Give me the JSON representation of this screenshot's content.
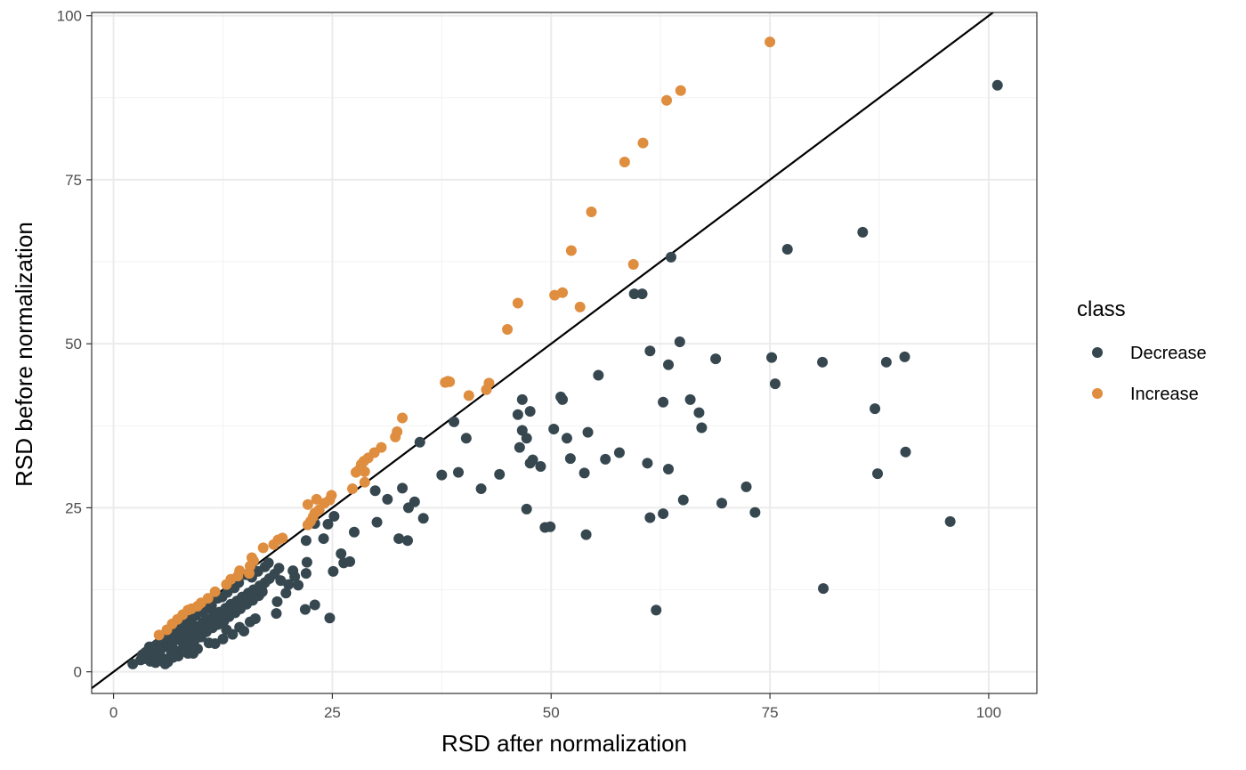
{
  "chart_data": {
    "type": "scatter",
    "xlabel": "RSD after normalization",
    "ylabel": "RSD before normalization",
    "xlim": [
      -2.5,
      105.5
    ],
    "ylim": [
      -3.3,
      100.5
    ],
    "x_ticks": [
      0,
      25,
      50,
      75,
      100
    ],
    "y_ticks": [
      0,
      25,
      50,
      75,
      100
    ],
    "grid": true,
    "reference_line": {
      "slope": 1,
      "intercept": 0,
      "color": "#000000"
    },
    "legend": {
      "title": "class",
      "position": "right"
    },
    "series": [
      {
        "name": "Decrease",
        "color": "#36474f",
        "points": [
          [
            101,
            89.4
          ],
          [
            85.6,
            67
          ],
          [
            77,
            64.4
          ],
          [
            63.7,
            63.2
          ],
          [
            59.5,
            57.6
          ],
          [
            60.4,
            57.6
          ],
          [
            64.7,
            50.3
          ],
          [
            61.3,
            48.9
          ],
          [
            63.4,
            46.8
          ],
          [
            68.8,
            47.7
          ],
          [
            75.2,
            47.9
          ],
          [
            81,
            47.2
          ],
          [
            88.3,
            47.2
          ],
          [
            90.4,
            48
          ],
          [
            55.4,
            45.2
          ],
          [
            75.6,
            43.9
          ],
          [
            51.1,
            41.9
          ],
          [
            46.7,
            41.5
          ],
          [
            51.3,
            41.5
          ],
          [
            62.8,
            41.1
          ],
          [
            65.9,
            41.5
          ],
          [
            87,
            40.1
          ],
          [
            46.2,
            39.2
          ],
          [
            47.6,
            39.7
          ],
          [
            66.9,
            39.5
          ],
          [
            38.9,
            38.1
          ],
          [
            46.7,
            36.8
          ],
          [
            50.3,
            37
          ],
          [
            54.2,
            36.5
          ],
          [
            67.2,
            37.2
          ],
          [
            40.3,
            35.6
          ],
          [
            47.2,
            35.6
          ],
          [
            51.8,
            35.6
          ],
          [
            35,
            35
          ],
          [
            46.4,
            34.2
          ],
          [
            57.8,
            33.4
          ],
          [
            90.5,
            33.5
          ],
          [
            47.9,
            32.3
          ],
          [
            52.2,
            32.5
          ],
          [
            56.2,
            32.4
          ],
          [
            47.6,
            31.8
          ],
          [
            48.8,
            31.3
          ],
          [
            61,
            31.8
          ],
          [
            63.4,
            30.9
          ],
          [
            39.4,
            30.4
          ],
          [
            44.1,
            30.1
          ],
          [
            53.8,
            30.3
          ],
          [
            87.3,
            30.2
          ],
          [
            37.5,
            30
          ],
          [
            29.9,
            27.6
          ],
          [
            33,
            28
          ],
          [
            42,
            27.9
          ],
          [
            72.3,
            28.2
          ],
          [
            31.3,
            26.3
          ],
          [
            65.1,
            26.2
          ],
          [
            69.5,
            25.7
          ],
          [
            33.7,
            25
          ],
          [
            34.4,
            25.9
          ],
          [
            47.2,
            24.8
          ],
          [
            35.4,
            23.4
          ],
          [
            61.3,
            23.5
          ],
          [
            62.8,
            24.1
          ],
          [
            73.3,
            24.3
          ],
          [
            95.6,
            22.9
          ],
          [
            49.3,
            22
          ],
          [
            49.9,
            22.1
          ],
          [
            30.1,
            22.8
          ],
          [
            25.2,
            23.7
          ],
          [
            24.5,
            22.5
          ],
          [
            23,
            22.6
          ],
          [
            27.5,
            21.3
          ],
          [
            32.6,
            20.3
          ],
          [
            33.6,
            20
          ],
          [
            54,
            20.9
          ],
          [
            24,
            20.3
          ],
          [
            22,
            20
          ],
          [
            26,
            18
          ],
          [
            26.3,
            16.6
          ],
          [
            27,
            16.8
          ],
          [
            25.1,
            15.3
          ],
          [
            22.1,
            16.7
          ],
          [
            22,
            15
          ],
          [
            20.5,
            15.4
          ],
          [
            18.9,
            15.8
          ],
          [
            20.7,
            14.5
          ],
          [
            20,
            13.3
          ],
          [
            21.1,
            13.2
          ],
          [
            19.7,
            12
          ],
          [
            18.7,
            10.7
          ],
          [
            18.6,
            8.9
          ],
          [
            21.9,
            9.5
          ],
          [
            23,
            10.2
          ],
          [
            24.7,
            8.2
          ],
          [
            62,
            9.4
          ],
          [
            81.1,
            12.7
          ],
          [
            17.7,
            16.6
          ],
          [
            17.3,
            16
          ],
          [
            16.5,
            15.3
          ],
          [
            15.8,
            14.4
          ],
          [
            15.1,
            14.8
          ],
          [
            14.3,
            13.6
          ],
          [
            13.8,
            12.8
          ],
          [
            13,
            12.1
          ],
          [
            12.4,
            11.4
          ],
          [
            11.9,
            11.2
          ],
          [
            11.2,
            10.1
          ],
          [
            10.7,
            9.6
          ],
          [
            10.1,
            9.1
          ],
          [
            9.4,
            8.6
          ],
          [
            8.9,
            7.9
          ],
          [
            8.3,
            7.3
          ],
          [
            7.6,
            6.9
          ],
          [
            7.1,
            6.3
          ],
          [
            6.5,
            5.6
          ],
          [
            6,
            5.1
          ],
          [
            5.4,
            4.6
          ],
          [
            4.9,
            4.1
          ],
          [
            4.3,
            3.5
          ],
          [
            3.8,
            3.1
          ],
          [
            3.3,
            2.6
          ],
          [
            3.9,
            2.2
          ],
          [
            4.6,
            2.9
          ],
          [
            5.2,
            3.4
          ],
          [
            5.8,
            3.9
          ],
          [
            6.4,
            4.4
          ],
          [
            7,
            4.8
          ],
          [
            7.7,
            5.3
          ],
          [
            8.2,
            5.8
          ],
          [
            8.9,
            6.3
          ],
          [
            9.5,
            6.9
          ],
          [
            10.2,
            7.5
          ],
          [
            10.8,
            8
          ],
          [
            11.5,
            8.6
          ],
          [
            12.1,
            9.1
          ],
          [
            12.8,
            9.7
          ],
          [
            13.4,
            10.3
          ],
          [
            14.1,
            10.8
          ],
          [
            14.7,
            11.4
          ],
          [
            15.4,
            12
          ],
          [
            16,
            12.5
          ],
          [
            16.7,
            13.1
          ],
          [
            17.3,
            13.6
          ],
          [
            4.2,
            1.6
          ],
          [
            4.8,
            1.4
          ],
          [
            5.5,
            2.1
          ],
          [
            6.1,
            1.9
          ],
          [
            6.6,
            2.6
          ],
          [
            7.3,
            3.1
          ],
          [
            8,
            3.8
          ],
          [
            8.7,
            4.2
          ],
          [
            9.3,
            4.9
          ],
          [
            10,
            5.3
          ],
          [
            10.6,
            6.1
          ],
          [
            11.3,
            6.7
          ],
          [
            11.9,
            7.2
          ],
          [
            12.6,
            7.7
          ],
          [
            13.2,
            8.4
          ],
          [
            13.9,
            9
          ],
          [
            14.5,
            9.6
          ],
          [
            15.2,
            10.3
          ],
          [
            15.9,
            10.9
          ],
          [
            16.6,
            11.6
          ],
          [
            2.2,
            1.2
          ],
          [
            3.1,
            1.8
          ],
          [
            5.9,
            1.2
          ],
          [
            6.2,
            1.5
          ],
          [
            7.4,
            2.4
          ],
          [
            8.5,
            2.8
          ],
          [
            9.6,
            3.5
          ],
          [
            10.9,
            4.4
          ],
          [
            11.6,
            4.3
          ],
          [
            12.5,
            5
          ],
          [
            13.6,
            5.7
          ],
          [
            14.4,
            6.8
          ],
          [
            15.6,
            7.6
          ],
          [
            16.2,
            8.1
          ],
          [
            14.9,
            6.2
          ],
          [
            12.9,
            6.4
          ],
          [
            9.1,
            2.8
          ],
          [
            6.8,
            2.2
          ],
          [
            5.1,
            1.7
          ],
          [
            4.5,
            2.3
          ],
          [
            3.6,
            2.9
          ],
          [
            4.1,
            3.8
          ],
          [
            5.6,
            4.4
          ],
          [
            6.3,
            3.7
          ],
          [
            7.9,
            4.5
          ],
          [
            8.6,
            5.4
          ],
          [
            9.8,
            6.2
          ],
          [
            11.1,
            7.4
          ],
          [
            12.2,
            8.3
          ],
          [
            13.5,
            9.4
          ],
          [
            14.6,
            10.6
          ],
          [
            15.7,
            11.7
          ],
          [
            16.9,
            12.8
          ],
          [
            17.8,
            14.2
          ],
          [
            18.4,
            14.9
          ],
          [
            19.1,
            13.9
          ],
          [
            17,
            12.2
          ],
          [
            15.3,
            11.2
          ],
          [
            14,
            10.1
          ],
          [
            12.7,
            8.9
          ],
          [
            11.4,
            7.9
          ],
          [
            10.3,
            6.6
          ],
          [
            9,
            5.7
          ],
          [
            7.8,
            5
          ],
          [
            6.7,
            4
          ],
          [
            5.3,
            3.1
          ],
          [
            4.4,
            2.6
          ],
          [
            3.5,
            2
          ]
        ]
      },
      {
        "name": "Increase",
        "color": "#df8d3f",
        "points": [
          [
            75,
            96
          ],
          [
            64.8,
            88.6
          ],
          [
            63.2,
            87.1
          ],
          [
            60.5,
            80.6
          ],
          [
            58.4,
            77.7
          ],
          [
            54.6,
            70.1
          ],
          [
            52.3,
            64.2
          ],
          [
            59.4,
            62.1
          ],
          [
            46.2,
            56.2
          ],
          [
            50.4,
            57.4
          ],
          [
            51.3,
            57.8
          ],
          [
            53.3,
            55.6
          ],
          [
            45,
            52.2
          ],
          [
            38.4,
            44.2
          ],
          [
            37.9,
            44.1
          ],
          [
            38.2,
            44.3
          ],
          [
            42.9,
            44
          ],
          [
            42.6,
            43
          ],
          [
            40.6,
            42.1
          ],
          [
            33,
            38.7
          ],
          [
            32.4,
            36.6
          ],
          [
            32.2,
            35.8
          ],
          [
            30.6,
            34.2
          ],
          [
            29.8,
            33.4
          ],
          [
            29.1,
            32.6
          ],
          [
            28.6,
            32.1
          ],
          [
            28.3,
            31.6
          ],
          [
            28.4,
            30.8
          ],
          [
            28,
            30.7
          ],
          [
            27.7,
            30.4
          ],
          [
            28.7,
            30.5
          ],
          [
            28.7,
            28.9
          ],
          [
            27.3,
            27.9
          ],
          [
            24.9,
            26.9
          ],
          [
            24.7,
            26.2
          ],
          [
            23.2,
            26.3
          ],
          [
            22.2,
            25.5
          ],
          [
            24.1,
            25.7
          ],
          [
            23.5,
            24.7
          ],
          [
            23,
            24.2
          ],
          [
            22.8,
            23.6
          ],
          [
            22.5,
            22.9
          ],
          [
            22.2,
            22.4
          ],
          [
            19.3,
            20.4
          ],
          [
            18.8,
            20.1
          ],
          [
            18.3,
            19.4
          ],
          [
            17.1,
            18.9
          ],
          [
            15.8,
            17.4
          ],
          [
            16,
            16.9
          ],
          [
            15.6,
            16.1
          ],
          [
            14.4,
            15.4
          ],
          [
            15.5,
            15
          ],
          [
            14.2,
            14.6
          ],
          [
            13.4,
            14.1
          ],
          [
            12.9,
            13.3
          ],
          [
            11.6,
            12.2
          ],
          [
            10.8,
            11.2
          ],
          [
            10,
            10.5
          ],
          [
            9.6,
            10
          ],
          [
            8.9,
            9.6
          ],
          [
            8.5,
            9.4
          ],
          [
            7.9,
            8.7
          ],
          [
            7.3,
            8
          ],
          [
            6.7,
            7.3
          ],
          [
            6.1,
            6.4
          ],
          [
            5.2,
            5.6
          ]
        ]
      }
    ]
  }
}
